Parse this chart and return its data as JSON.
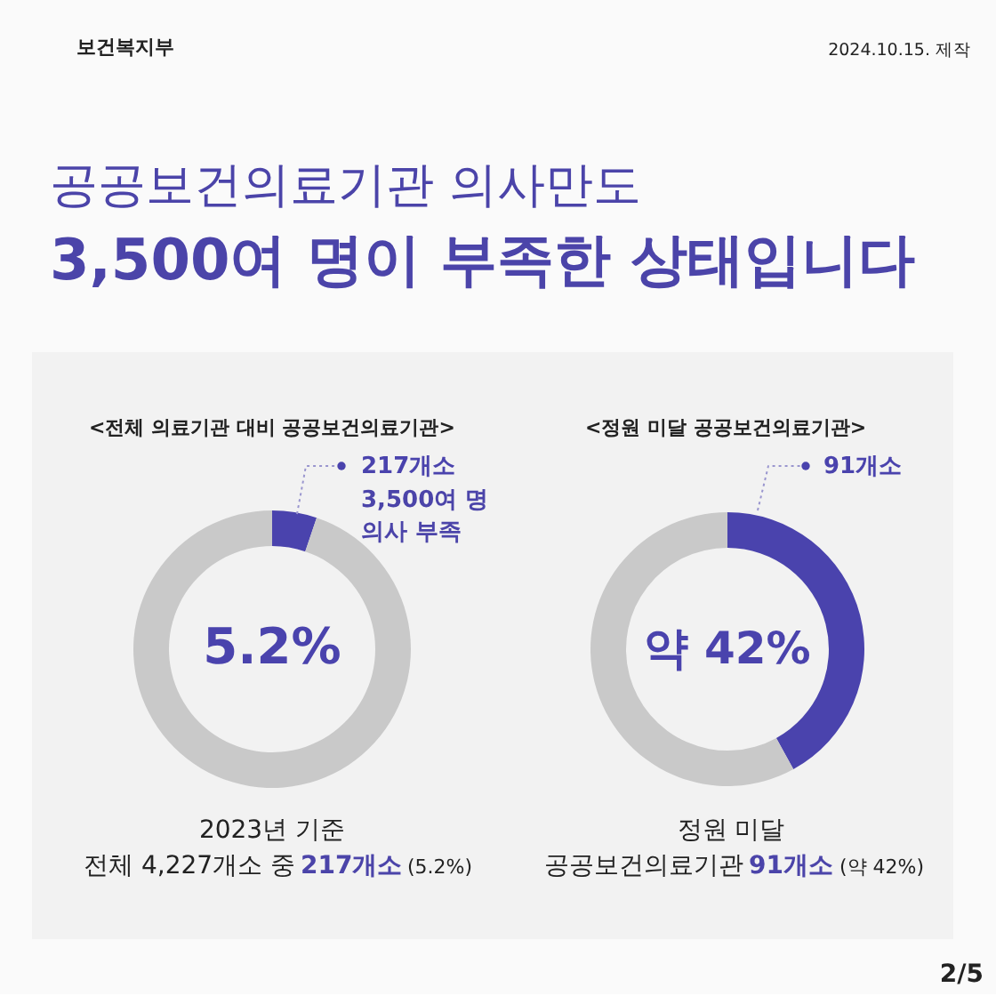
{
  "chart_data": [
    {
      "type": "other",
      "title": "공공보건의료기관 의사만도",
      "subtitle": "3,500여 명이 부족한 상태입니다",
      "annotations": [
        "보건복지부",
        "2024.10.15. 제작",
        "2/5"
      ]
    },
    {
      "type": "donut",
      "title": "<전체 의료기관 대비 공공보건의료기관>",
      "categories": [
        "217개소",
        null
      ],
      "values": [
        5.2,
        94.8
      ],
      "colors": [
        "#4a43ad",
        "#c9c9c9"
      ],
      "value_labels": [
        "5.2%",
        null
      ],
      "annotations": [
        "3,500여 명",
        "의사 부족",
        "2023년 기준",
        "전체 4,227개소 중",
        "217개소",
        "(5.2%)"
      ]
    },
    {
      "type": "donut",
      "title": "<정원 미달 공공보건의료기관>",
      "categories": [
        "91개소",
        null
      ],
      "values": [
        42,
        58
      ],
      "colors": [
        "#4a43ad",
        "#c9c9c9"
      ],
      "value_labels": [
        "약 42%",
        null
      ],
      "annotations": [
        "정원 미달",
        "공공보건의료기관",
        "91개소",
        "(약 42%)"
      ]
    }
  ]
}
